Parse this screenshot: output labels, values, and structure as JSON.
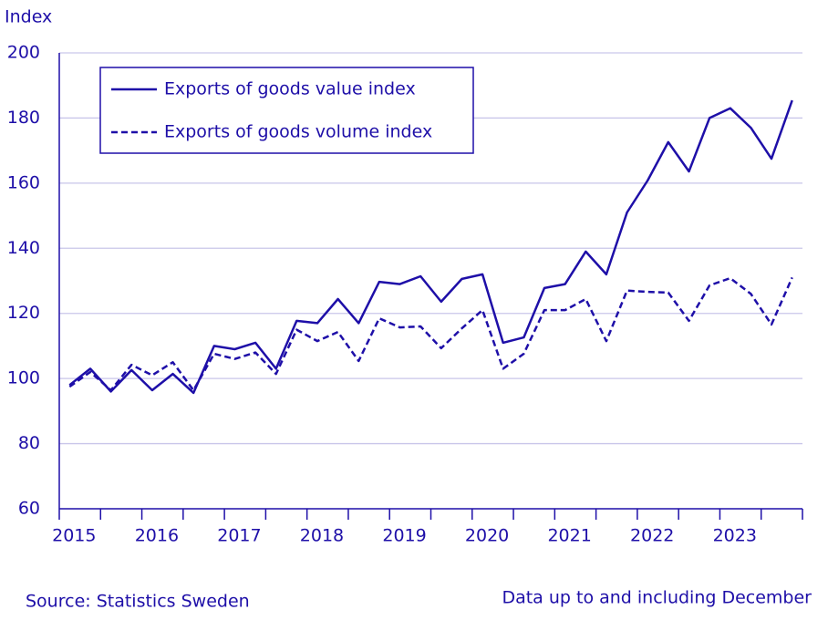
{
  "chart_data": {
    "type": "line",
    "y_label": "Index",
    "categories": [
      "2015",
      null,
      null,
      null,
      "2016",
      null,
      null,
      null,
      "2017",
      null,
      null,
      null,
      "2018",
      null,
      null,
      null,
      "2019",
      null,
      null,
      null,
      "2020",
      null,
      null,
      null,
      "2021",
      null,
      null,
      null,
      "2022",
      null,
      null,
      null,
      "2023",
      null,
      null,
      null
    ],
    "series": [
      {
        "name": "Exports of goods value index",
        "color": "#1e0fa8",
        "linestyle": "solid",
        "values": [
          98,
          103,
          96,
          102.6,
          96.4,
          101.4,
          95.6,
          110,
          109,
          111,
          103,
          117.7,
          117,
          124.4,
          117,
          129.7,
          129,
          131.4,
          123.6,
          130.6,
          132,
          111,
          112.6,
          127.8,
          129,
          139,
          132,
          151,
          160.8,
          172.6,
          163.6,
          180,
          183,
          177,
          167.5,
          185.4
        ]
      },
      {
        "name": "Exports of goods volume index",
        "color": "#1e0fa8",
        "linestyle": "dashed",
        "values": [
          97.5,
          102,
          96.4,
          104.2,
          101,
          105,
          96.4,
          107.6,
          106,
          108,
          101.4,
          115,
          111.5,
          114.3,
          105.4,
          118.5,
          115.7,
          116,
          109.3,
          115.4,
          121,
          103,
          107.6,
          121,
          121,
          124.4,
          111.5,
          127,
          126.6,
          126.4,
          117.7,
          128.6,
          130.8,
          126,
          116.6,
          131
        ]
      }
    ],
    "ylim": [
      60,
      200
    ],
    "yticks": [
      60,
      80,
      100,
      120,
      140,
      160,
      180,
      200
    ],
    "grid": true,
    "legend": "upper left",
    "source": "Source: Statistics Sweden",
    "note": "Data up to and including December"
  }
}
